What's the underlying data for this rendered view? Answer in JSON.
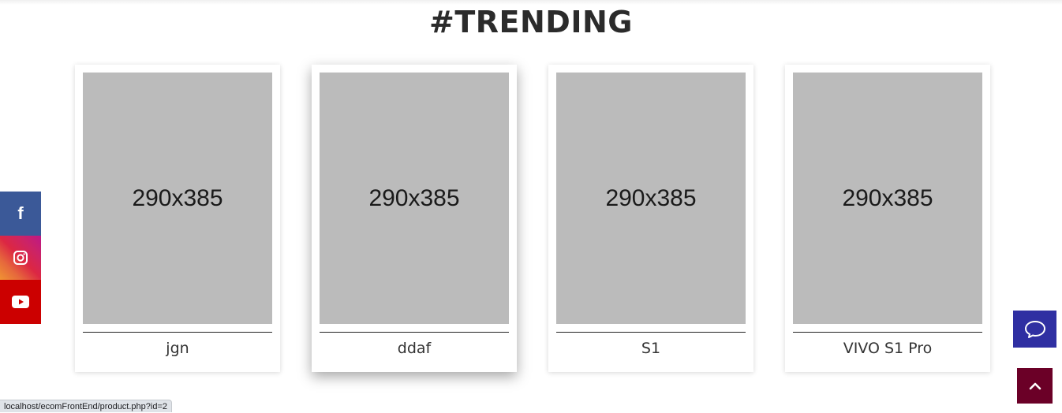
{
  "section": {
    "title": "#TRENDING"
  },
  "products": [
    {
      "placeholder": "290x385",
      "name": "jgn"
    },
    {
      "placeholder": "290x385",
      "name": "ddaf"
    },
    {
      "placeholder": "290x385",
      "name": "S1"
    },
    {
      "placeholder": "290x385",
      "name": "VIVO S1 Pro"
    }
  ],
  "social": {
    "facebook_icon": "facebook-icon",
    "instagram_icon": "instagram-icon",
    "youtube_icon": "youtube-icon",
    "facebook_color": "#3b5998",
    "youtube_color": "#cc0000"
  },
  "floating": {
    "chat_icon": "chat-bubble-icon",
    "chat_color": "#2f2fa2",
    "scroll_top_icon": "chevron-up-icon",
    "scroll_top_color": "#6b0027"
  },
  "status_bar": {
    "url": "localhost/ecomFrontEnd/product.php?id=2"
  }
}
